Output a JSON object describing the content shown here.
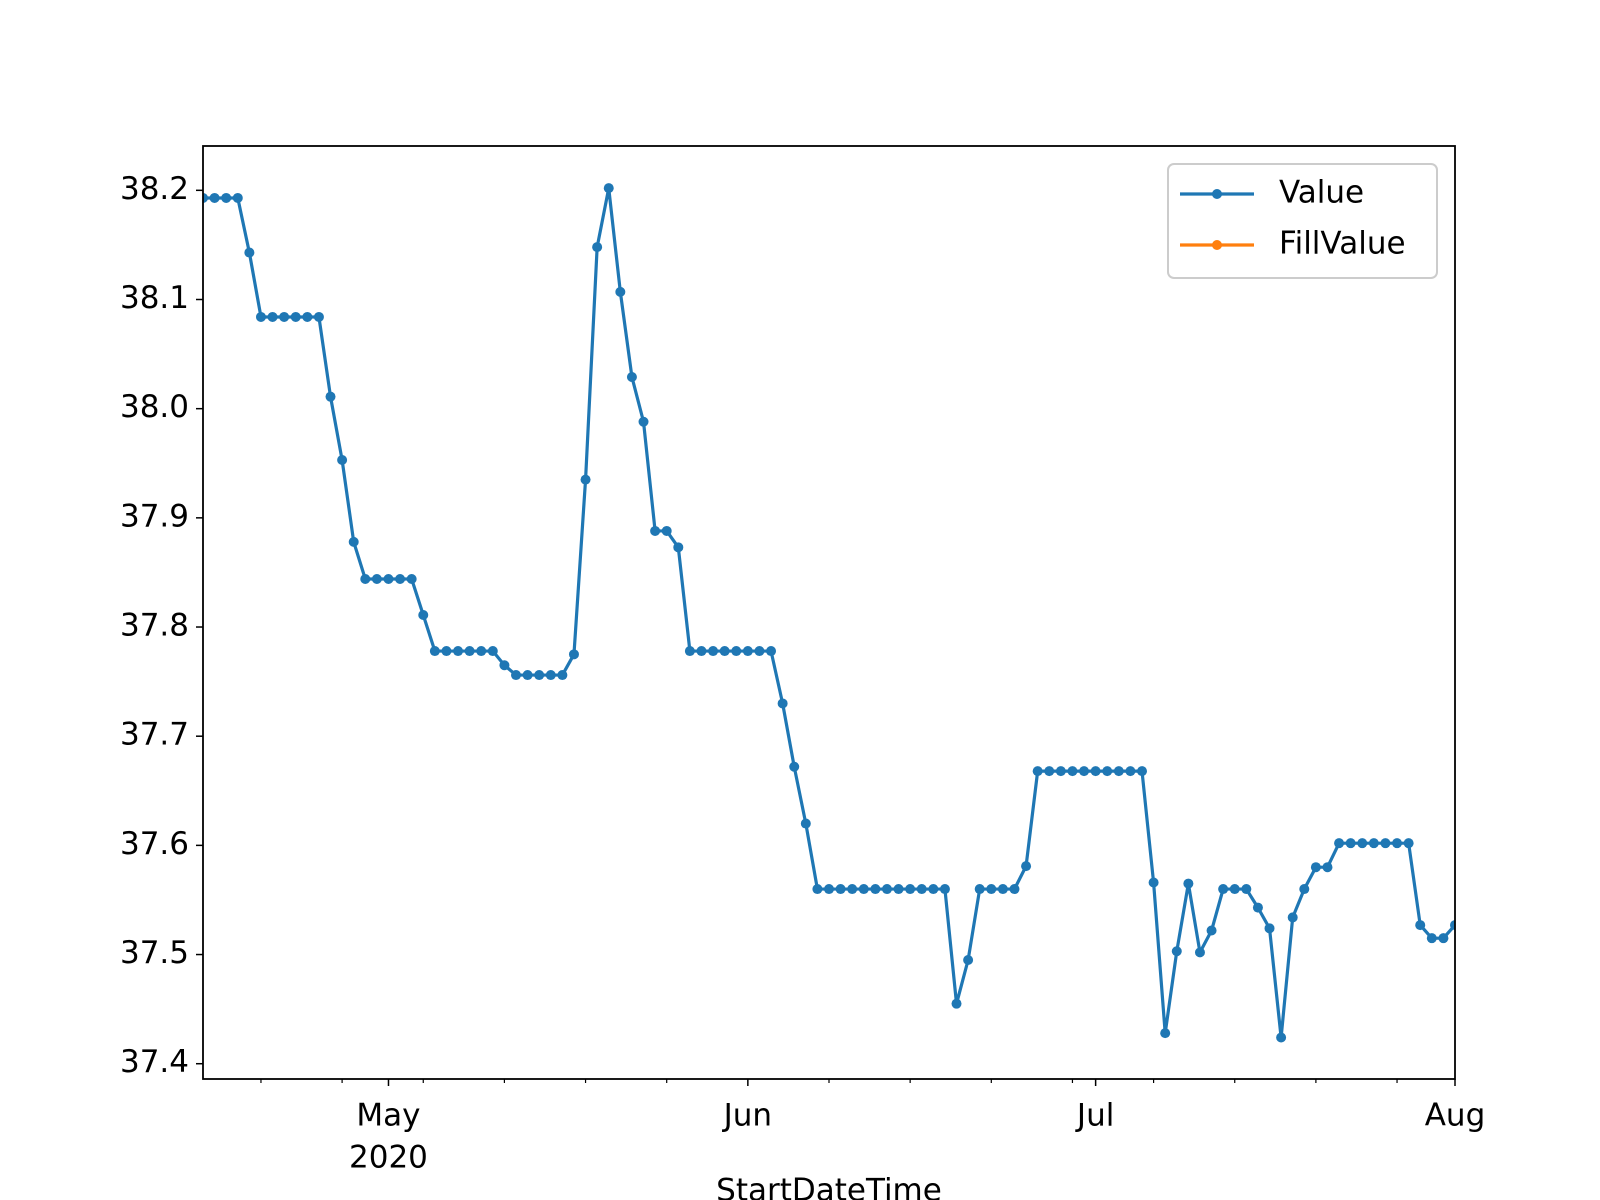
{
  "chart_data": {
    "type": "line",
    "xlabel": "StartDateTime",
    "x": [
      "2020-04-15",
      "2020-04-16",
      "2020-04-17",
      "2020-04-18",
      "2020-04-19",
      "2020-04-20",
      "2020-04-21",
      "2020-04-22",
      "2020-04-23",
      "2020-04-24",
      "2020-04-25",
      "2020-04-26",
      "2020-04-27",
      "2020-04-28",
      "2020-04-29",
      "2020-04-30",
      "2020-05-01",
      "2020-05-02",
      "2020-05-03",
      "2020-05-04",
      "2020-05-05",
      "2020-05-06",
      "2020-05-07",
      "2020-05-08",
      "2020-05-09",
      "2020-05-10",
      "2020-05-11",
      "2020-05-12",
      "2020-05-13",
      "2020-05-14",
      "2020-05-15",
      "2020-05-16",
      "2020-05-17",
      "2020-05-18",
      "2020-05-19",
      "2020-05-20",
      "2020-05-21",
      "2020-05-22",
      "2020-05-23",
      "2020-05-24",
      "2020-05-25",
      "2020-05-26",
      "2020-05-27",
      "2020-05-28",
      "2020-05-29",
      "2020-05-30",
      "2020-05-31",
      "2020-06-01",
      "2020-06-02",
      "2020-06-03",
      "2020-06-04",
      "2020-06-05",
      "2020-06-06",
      "2020-06-07",
      "2020-06-08",
      "2020-06-09",
      "2020-06-10",
      "2020-06-11",
      "2020-06-12",
      "2020-06-13",
      "2020-06-14",
      "2020-06-15",
      "2020-06-16",
      "2020-06-17",
      "2020-06-18",
      "2020-06-19",
      "2020-06-20",
      "2020-06-21",
      "2020-06-22",
      "2020-06-23",
      "2020-06-24",
      "2020-06-25",
      "2020-06-26",
      "2020-06-27",
      "2020-06-28",
      "2020-06-29",
      "2020-06-30",
      "2020-07-01",
      "2020-07-02",
      "2020-07-03",
      "2020-07-04",
      "2020-07-05",
      "2020-07-06",
      "2020-07-07",
      "2020-07-08",
      "2020-07-09",
      "2020-07-10",
      "2020-07-11",
      "2020-07-12",
      "2020-07-13",
      "2020-07-14",
      "2020-07-15",
      "2020-07-16",
      "2020-07-17",
      "2020-07-18",
      "2020-07-19",
      "2020-07-20",
      "2020-07-21",
      "2020-07-22",
      "2020-07-23",
      "2020-07-24",
      "2020-07-25",
      "2020-07-26",
      "2020-07-27",
      "2020-07-28",
      "2020-07-29",
      "2020-07-30",
      "2020-07-31",
      "2020-08-01"
    ],
    "series": [
      {
        "name": "Value",
        "color": "#1f77b4",
        "values": [
          38.193,
          38.193,
          38.193,
          38.193,
          38.143,
          38.084,
          38.084,
          38.084,
          38.084,
          38.084,
          38.084,
          38.011,
          37.953,
          37.878,
          37.844,
          37.844,
          37.844,
          37.844,
          37.844,
          37.811,
          37.778,
          37.778,
          37.778,
          37.778,
          37.778,
          37.778,
          37.765,
          37.756,
          37.756,
          37.756,
          37.756,
          37.756,
          37.775,
          37.935,
          38.148,
          38.202,
          38.107,
          38.029,
          37.988,
          37.888,
          37.888,
          37.873,
          37.778,
          37.778,
          37.778,
          37.778,
          37.778,
          37.778,
          37.778,
          37.778,
          37.73,
          37.672,
          37.62,
          37.56,
          37.56,
          37.56,
          37.56,
          37.56,
          37.56,
          37.56,
          37.56,
          37.56,
          37.56,
          37.56,
          37.56,
          37.455,
          37.495,
          37.56,
          37.56,
          37.56,
          37.56,
          37.581,
          37.668,
          37.668,
          37.668,
          37.668,
          37.668,
          37.668,
          37.668,
          37.668,
          37.668,
          37.668,
          37.566,
          37.428,
          37.503,
          37.565,
          37.502,
          37.522,
          37.56,
          37.56,
          37.56,
          37.543,
          37.524,
          37.424,
          37.534,
          37.56,
          37.58,
          37.58,
          37.602,
          37.602,
          37.602,
          37.602,
          37.602,
          37.602,
          37.602,
          37.527,
          37.515,
          37.515,
          37.527
        ]
      },
      {
        "name": "FillValue",
        "color": "#ff7f0e",
        "values": [
          null,
          null,
          null,
          null,
          null,
          null,
          null,
          null,
          null,
          null,
          null,
          null,
          null,
          null,
          null,
          null,
          null,
          null,
          null,
          null,
          null,
          null,
          null,
          null,
          null,
          null,
          null,
          null,
          null,
          null,
          null,
          null,
          null,
          null,
          null,
          null,
          null,
          null,
          null,
          null,
          null,
          null,
          null,
          null,
          null,
          null,
          null,
          null,
          null,
          null,
          null,
          null,
          null,
          null,
          null,
          null,
          null,
          null,
          null,
          null,
          null,
          null,
          null,
          null,
          null,
          null,
          null,
          null,
          null,
          null,
          null,
          null,
          null,
          null,
          null,
          null,
          null,
          null,
          null,
          null,
          null,
          null,
          null,
          null,
          null,
          null,
          null,
          null,
          null,
          null,
          null,
          null,
          null,
          null,
          null,
          null,
          null,
          null,
          null,
          null,
          null,
          null,
          null,
          null,
          null,
          null,
          null,
          null,
          null
        ]
      }
    ],
    "xlim": [
      "2020-04-15",
      "2020-08-01"
    ],
    "xticks": [
      {
        "value": "2020-05-01",
        "label": "May"
      },
      {
        "value": "2020-06-01",
        "label": "Jun"
      },
      {
        "value": "2020-07-01",
        "label": "Jul"
      },
      {
        "value": "2020-08-01",
        "label": "Aug"
      }
    ],
    "x_year_label": {
      "value": "2020-05-01",
      "label": "2020"
    },
    "xminorticks": [
      "2020-04-20",
      "2020-04-27",
      "2020-05-04",
      "2020-05-11",
      "2020-05-18",
      "2020-05-25",
      "2020-06-08",
      "2020-06-15",
      "2020-06-22",
      "2020-06-29",
      "2020-07-06",
      "2020-07-13",
      "2020-07-20",
      "2020-07-27"
    ],
    "ylim": [
      37.386,
      38.2406
    ],
    "yticks": [
      37.4,
      37.5,
      37.6,
      37.7,
      37.8,
      37.9,
      {
        "value": 38,
        "label": "38.0"
      },
      38.1,
      38.2
    ],
    "legend": "upper right",
    "grid": false
  }
}
